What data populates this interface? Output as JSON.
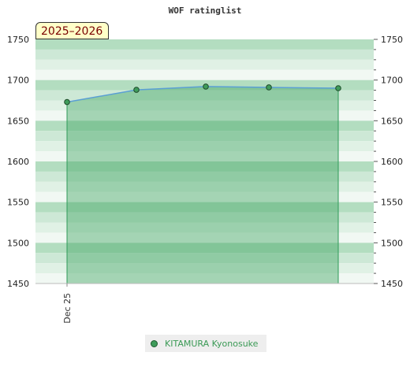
{
  "chart_data": {
    "type": "area",
    "title": "WOF ratinglist",
    "period_label": "2025–2026",
    "categories": [
      "Dec 25",
      "",
      "",
      "",
      ""
    ],
    "series": [
      {
        "name": "KITAMURA Kyonosuke",
        "values": [
          1673,
          1688,
          1692,
          1691,
          1690
        ]
      }
    ],
    "ylim": [
      1450,
      1750
    ],
    "yticks": [
      1450,
      1500,
      1550,
      1600,
      1650,
      1700,
      1750
    ],
    "xlabel": "",
    "ylabel": "",
    "grid": true,
    "legend_position": "bottom",
    "colors": {
      "line": "#5a9fd4",
      "fill": "#48a868",
      "marker": "#3f9c5b",
      "band_dark": "#b3ddc0",
      "band_mid": "#cde8d6",
      "band_light": "#e0f1e5",
      "band_lightest": "#f1f8f3"
    }
  }
}
